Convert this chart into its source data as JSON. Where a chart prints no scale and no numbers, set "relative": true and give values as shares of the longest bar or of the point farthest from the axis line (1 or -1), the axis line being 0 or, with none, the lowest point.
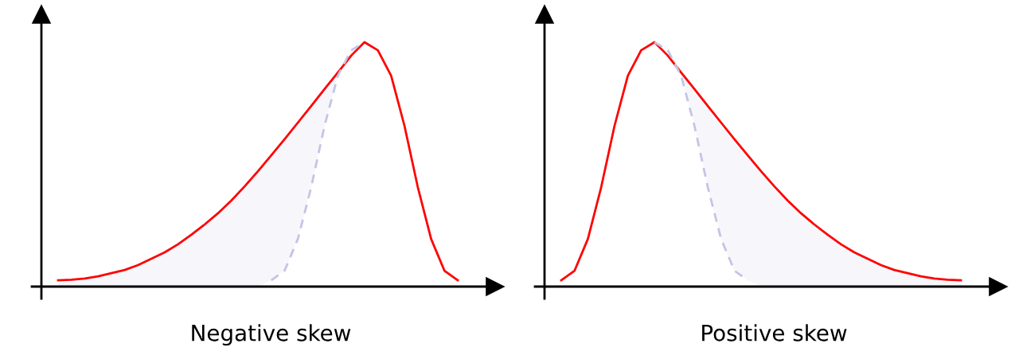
{
  "chart_data": [
    {
      "type": "line",
      "relative": true,
      "xlabel": "Negative skew",
      "categories": [
        null,
        null,
        null,
        null,
        null,
        null,
        null,
        null,
        null,
        null,
        null,
        null,
        null,
        null,
        null,
        null,
        null,
        null,
        null,
        null,
        null,
        null,
        null,
        null,
        null,
        null,
        null,
        null,
        null,
        null,
        null
      ],
      "series": [
        {
          "color": "#ff0000",
          "line_style": "solid",
          "values": [
            0.026,
            0.028,
            0.033,
            0.042,
            0.055,
            0.068,
            0.088,
            0.114,
            0.14,
            0.173,
            0.212,
            0.254,
            0.3,
            0.352,
            0.41,
            0.472,
            0.537,
            0.603,
            0.671,
            0.739,
            0.808,
            0.876,
            0.945,
            1,
            0.967,
            0.863,
            0.658,
            0.407,
            0.195,
            0.065,
            0.026
          ],
          "lower": [
            0,
            0,
            0,
            0,
            0,
            0,
            0,
            0,
            0,
            0,
            0,
            0,
            0,
            0,
            0,
            0,
            0.026,
            0.065,
            0.195,
            0.407,
            0.658,
            0.863,
            0.967,
            1,
            null,
            null,
            null,
            null,
            null,
            null,
            null
          ],
          "upper": [
            0.026,
            0.028,
            0.033,
            0.042,
            0.055,
            0.068,
            0.088,
            0.114,
            0.14,
            0.173,
            0.212,
            0.254,
            0.3,
            0.352,
            0.41,
            0.472,
            0.537,
            0.603,
            0.671,
            0.739,
            0.808,
            0.876,
            0.945,
            1,
            null,
            null,
            null,
            null,
            null,
            null,
            null
          ]
        },
        {
          "color": "#c4c4e6",
          "line_style": "dashed",
          "values": [
            null,
            null,
            null,
            null,
            null,
            null,
            null,
            null,
            null,
            null,
            null,
            null,
            null,
            null,
            null,
            null,
            0.026,
            0.065,
            0.195,
            0.407,
            0.658,
            0.863,
            0.967,
            1,
            null,
            null,
            null,
            null,
            null,
            null,
            null
          ]
        }
      ]
    },
    {
      "type": "line",
      "relative": true,
      "xlabel": "Positive skew",
      "categories": [
        null,
        null,
        null,
        null,
        null,
        null,
        null,
        null,
        null,
        null,
        null,
        null,
        null,
        null,
        null,
        null,
        null,
        null,
        null,
        null,
        null,
        null,
        null,
        null,
        null,
        null,
        null,
        null,
        null,
        null,
        null
      ],
      "series": [
        {
          "color": "#ff0000",
          "line_style": "solid",
          "values": [
            0.026,
            0.065,
            0.195,
            0.407,
            0.658,
            0.863,
            0.967,
            1,
            0.945,
            0.876,
            0.808,
            0.739,
            0.671,
            0.603,
            0.537,
            0.472,
            0.41,
            0.352,
            0.3,
            0.254,
            0.212,
            0.173,
            0.14,
            0.114,
            0.088,
            0.068,
            0.055,
            0.042,
            0.033,
            0.028,
            0.026
          ],
          "lower": [
            null,
            null,
            null,
            null,
            null,
            null,
            null,
            1,
            0.967,
            0.863,
            0.658,
            0.407,
            0.195,
            0.065,
            0.026,
            0,
            0,
            0,
            0,
            0,
            0,
            0,
            0,
            0,
            0,
            0,
            0,
            0,
            0,
            0,
            0
          ],
          "upper": [
            null,
            null,
            null,
            null,
            null,
            null,
            null,
            1,
            0.945,
            0.876,
            0.808,
            0.739,
            0.671,
            0.603,
            0.537,
            0.472,
            0.41,
            0.352,
            0.3,
            0.254,
            0.212,
            0.173,
            0.14,
            0.114,
            0.088,
            0.068,
            0.055,
            0.042,
            0.033,
            0.028,
            0.026
          ]
        },
        {
          "color": "#c4c4e6",
          "line_style": "dashed",
          "values": [
            null,
            null,
            null,
            null,
            null,
            null,
            null,
            1,
            0.967,
            0.863,
            0.658,
            0.407,
            0.195,
            0.065,
            0.026,
            null,
            null,
            null,
            null,
            null,
            null,
            null,
            null,
            null,
            null,
            null,
            null,
            null,
            null,
            null,
            null
          ]
        }
      ]
    }
  ]
}
